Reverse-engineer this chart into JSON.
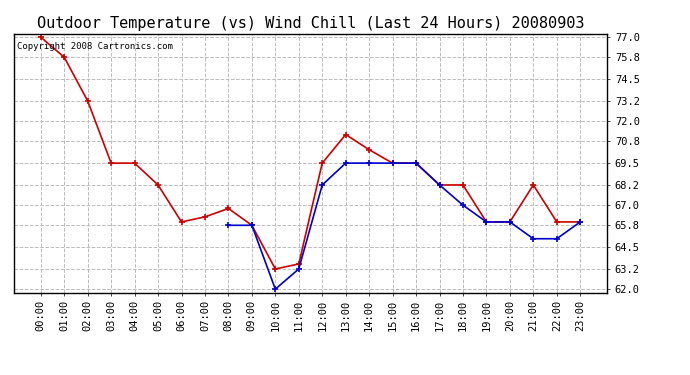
{
  "title": "Outdoor Temperature (vs) Wind Chill (Last 24 Hours) 20080903",
  "copyright_text": "Copyright 2008 Cartronics.com",
  "hours": [
    "00:00",
    "01:00",
    "02:00",
    "03:00",
    "04:00",
    "05:00",
    "06:00",
    "07:00",
    "08:00",
    "09:00",
    "10:00",
    "11:00",
    "12:00",
    "13:00",
    "14:00",
    "15:00",
    "16:00",
    "17:00",
    "18:00",
    "19:00",
    "20:00",
    "21:00",
    "22:00",
    "23:00"
  ],
  "temp": [
    77.0,
    75.8,
    73.2,
    69.5,
    69.5,
    68.2,
    66.0,
    66.3,
    66.8,
    65.8,
    63.2,
    63.5,
    69.5,
    71.2,
    70.3,
    69.5,
    69.5,
    68.2,
    68.2,
    66.0,
    66.0,
    68.2,
    66.0,
    66.0
  ],
  "wind_chill": [
    null,
    null,
    null,
    null,
    null,
    null,
    null,
    null,
    65.8,
    65.8,
    62.0,
    63.2,
    68.2,
    69.5,
    69.5,
    69.5,
    69.5,
    68.2,
    67.0,
    66.0,
    66.0,
    65.0,
    65.0,
    66.0
  ],
  "temp_color": "#cc0000",
  "wind_color": "#0000cc",
  "bg_color": "#ffffff",
  "grid_color": "#bbbbbb",
  "ylim_min": 62.0,
  "ylim_max": 77.0,
  "yticks": [
    62.0,
    63.2,
    64.5,
    65.8,
    67.0,
    68.2,
    69.5,
    70.8,
    72.0,
    73.2,
    74.5,
    75.8,
    77.0
  ],
  "title_fontsize": 11,
  "tick_fontsize": 7.5,
  "copyright_fontsize": 6.5
}
